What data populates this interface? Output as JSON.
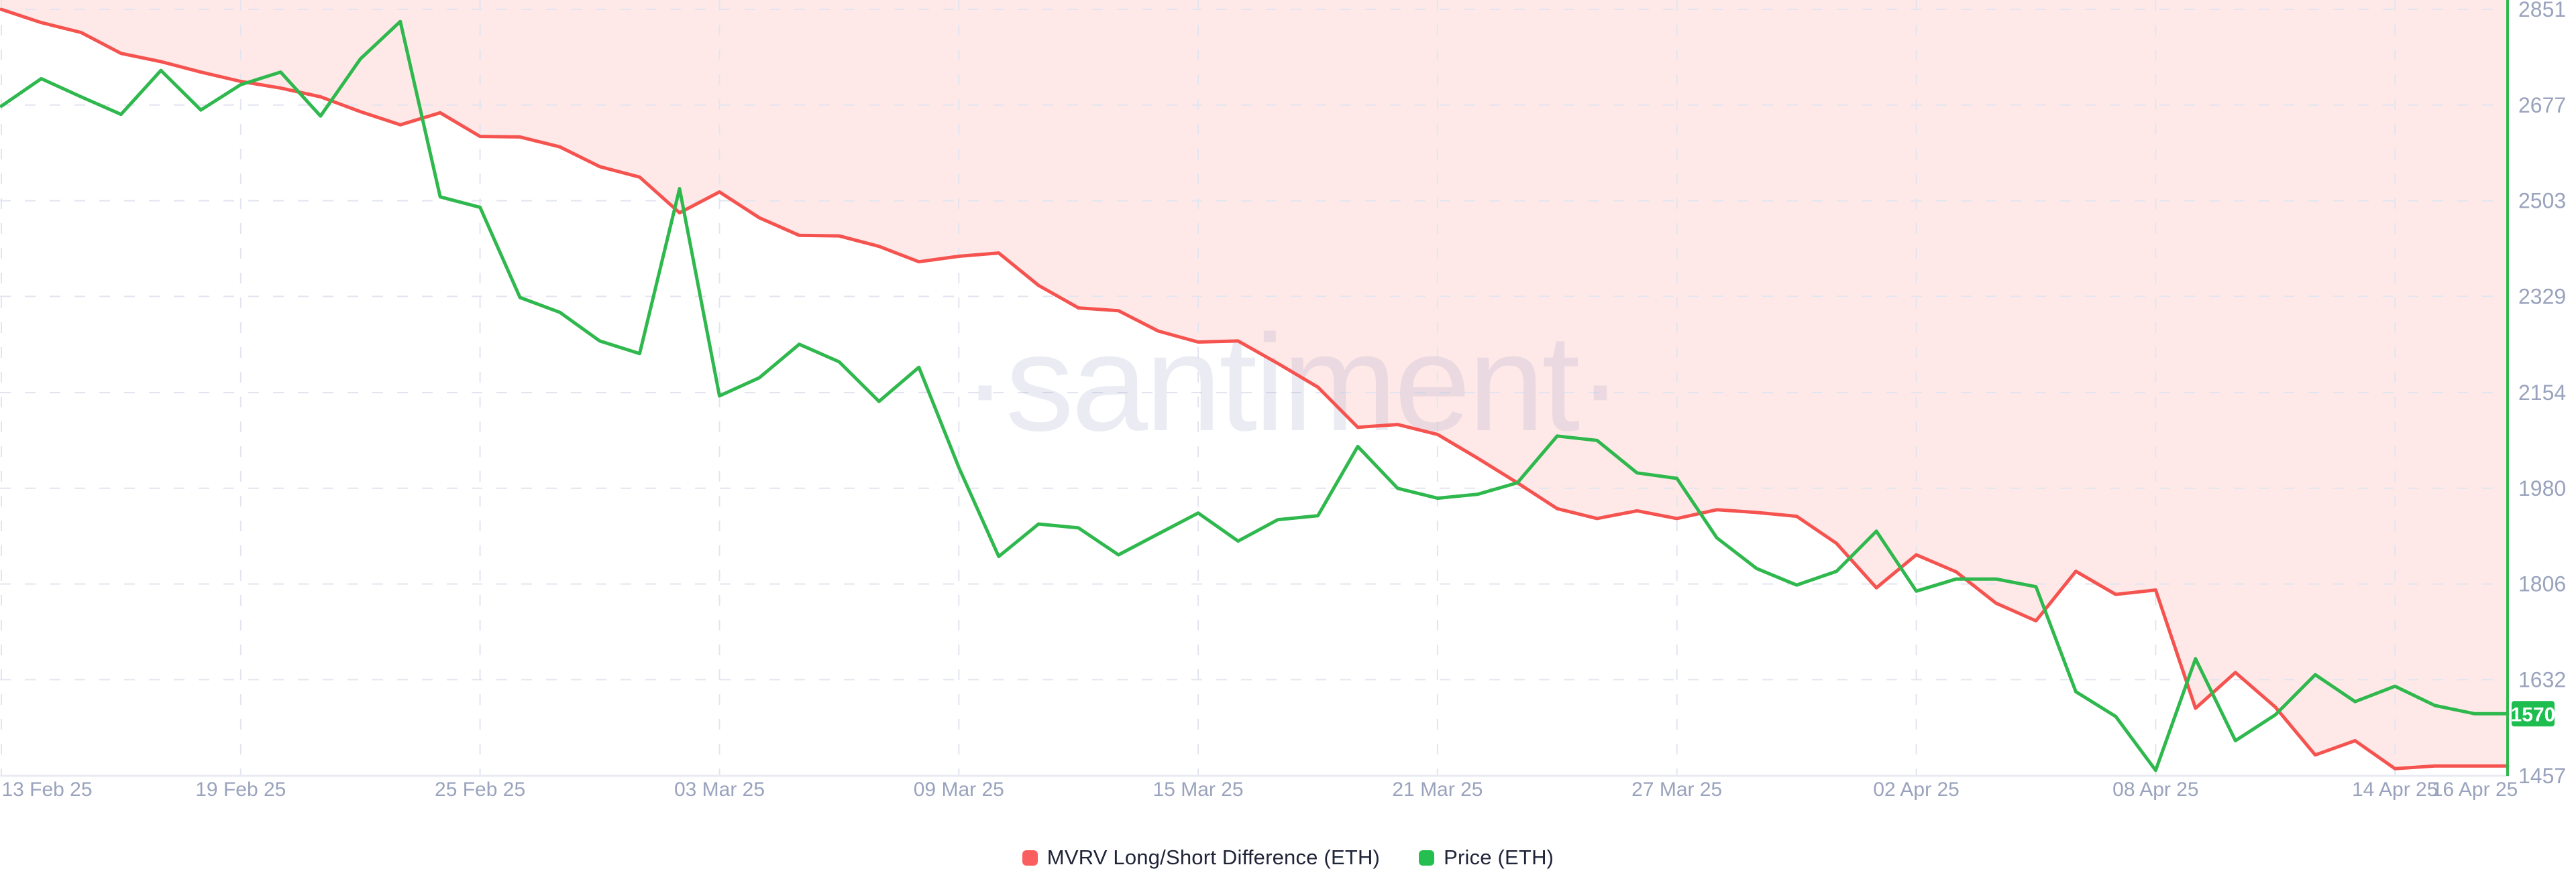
{
  "watermark": "·santiment·",
  "last_price_badge": {
    "value": "1570",
    "bg_color": "#1dbd4f",
    "text_color": "#ffffff"
  },
  "legend": {
    "items": [
      {
        "label": "MVRV Long/Short Difference (ETH)",
        "color": "#fa5e5e"
      },
      {
        "label": "Price (ETH)",
        "color": "#24bf4e"
      }
    ]
  },
  "colors": {
    "mvrv_line": "#f5534f",
    "mvrv_area_fill": "rgba(245,83,79,0.13)",
    "price_line": "#2fb84d",
    "price_axis": "#2fb84d",
    "x_axis_line": "#e9ebf3",
    "gridline": "#e2e5f0",
    "tick_label": "#9aa3bd",
    "watermark": "rgba(135,143,185,0.17)"
  },
  "axes": {
    "y_ticks": [
      2851,
      2677,
      2503,
      2329,
      2154,
      1980,
      1806,
      1632,
      1457
    ],
    "x_ticks": [
      {
        "label": "13 Feb 25",
        "day": 0,
        "grid": true
      },
      {
        "label": "19 Feb 25",
        "day": 6,
        "grid": true
      },
      {
        "label": "25 Feb 25",
        "day": 12,
        "grid": true
      },
      {
        "label": "03 Mar 25",
        "day": 18,
        "grid": true
      },
      {
        "label": "09 Mar 25",
        "day": 24,
        "grid": true
      },
      {
        "label": "15 Mar 25",
        "day": 30,
        "grid": true
      },
      {
        "label": "21 Mar 25",
        "day": 36,
        "grid": true
      },
      {
        "label": "27 Mar 25",
        "day": 42,
        "grid": true
      },
      {
        "label": "02 Apr 25",
        "day": 48,
        "grid": true
      },
      {
        "label": "08 Apr 25",
        "day": 54,
        "grid": true
      },
      {
        "label": "14 Apr 25",
        "day": 60,
        "grid": true
      },
      {
        "label": "16 Apr 25",
        "day": 62,
        "grid": false
      }
    ]
  },
  "chart_data": {
    "type": "line",
    "title": "",
    "xlabel": "",
    "ylabel": "",
    "ylim": [
      1457,
      2851
    ],
    "grid": true,
    "legend_position": "bottom",
    "note": "Red MVRV series has a hidden axis; values below are its plotted positions expressed on the visible price axis. Green price axis ticks: 1457-2851.",
    "x": [
      "2025-02-13",
      "2025-02-14",
      "2025-02-15",
      "2025-02-16",
      "2025-02-17",
      "2025-02-18",
      "2025-02-19",
      "2025-02-20",
      "2025-02-21",
      "2025-02-22",
      "2025-02-23",
      "2025-02-24",
      "2025-02-25",
      "2025-02-26",
      "2025-02-27",
      "2025-02-28",
      "2025-03-01",
      "2025-03-02",
      "2025-03-03",
      "2025-03-04",
      "2025-03-05",
      "2025-03-06",
      "2025-03-07",
      "2025-03-08",
      "2025-03-09",
      "2025-03-10",
      "2025-03-11",
      "2025-03-12",
      "2025-03-13",
      "2025-03-14",
      "2025-03-15",
      "2025-03-16",
      "2025-03-17",
      "2025-03-18",
      "2025-03-19",
      "2025-03-20",
      "2025-03-21",
      "2025-03-22",
      "2025-03-23",
      "2025-03-24",
      "2025-03-25",
      "2025-03-26",
      "2025-03-27",
      "2025-03-28",
      "2025-03-29",
      "2025-03-30",
      "2025-03-31",
      "2025-04-01",
      "2025-04-02",
      "2025-04-03",
      "2025-04-04",
      "2025-04-05",
      "2025-04-06",
      "2025-04-07",
      "2025-04-08",
      "2025-04-09",
      "2025-04-10",
      "2025-04-11",
      "2025-04-12",
      "2025-04-13",
      "2025-04-14",
      "2025-04-15",
      "2025-04-16"
    ],
    "series": [
      {
        "name": "MVRV Long/Short Difference (ETH)",
        "color": "#f5534f",
        "fill": "area-above-line",
        "values": [
          2851,
          2827,
          2809,
          2771,
          2756,
          2737,
          2720,
          2708,
          2692,
          2665,
          2641,
          2663,
          2620,
          2619,
          2601,
          2565,
          2546,
          2481,
          2519,
          2472,
          2440,
          2439,
          2420,
          2392,
          2402,
          2408,
          2349,
          2308,
          2303,
          2266,
          2246,
          2248,
          2207,
          2164,
          2091,
          2096,
          2078,
          2035,
          1990,
          1943,
          1925,
          1939,
          1925,
          1941,
          1936,
          1929,
          1880,
          1799,
          1859,
          1828,
          1771,
          1739,
          1829,
          1787,
          1795,
          1580,
          1645,
          1582,
          1495,
          1521,
          1470,
          1475,
          1475
        ]
      },
      {
        "name": "Price (ETH)",
        "color": "#2fb84d",
        "last_value_badge": 1570,
        "values": [
          2675,
          2725,
          2692,
          2660,
          2740,
          2668,
          2714,
          2737,
          2657,
          2761,
          2829,
          2510,
          2491,
          2327,
          2300,
          2248,
          2225,
          2525,
          2148,
          2181,
          2242,
          2210,
          2138,
          2200,
          2018,
          1856,
          1915,
          1908,
          1859,
          1897,
          1935,
          1884,
          1923,
          1930,
          2056,
          1980,
          1962,
          1969,
          1990,
          2075,
          2067,
          2008,
          1998,
          1890,
          1834,
          1804,
          1829,
          1902,
          1793,
          1815,
          1815,
          1801,
          1610,
          1565,
          1467,
          1670,
          1521,
          1568,
          1641,
          1592,
          1620,
          1585,
          1570
        ]
      }
    ]
  }
}
